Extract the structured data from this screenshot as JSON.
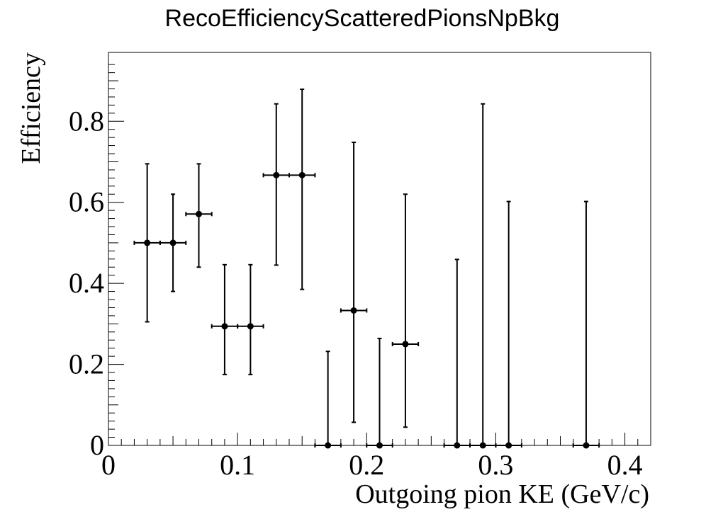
{
  "chart_data": {
    "type": "scatter",
    "title": "RecoEfficiencyScatteredPionsNpBkg",
    "xlabel": "Outgoing pion KE (GeV/c)",
    "ylabel": "Efficiency",
    "xlim": [
      0,
      0.42
    ],
    "ylim": [
      0,
      0.97
    ],
    "grid": false,
    "x_ticks": [
      {
        "value": 0,
        "label": "0"
      },
      {
        "value": 0.1,
        "label": "0.1"
      },
      {
        "value": 0.2,
        "label": "0.2"
      },
      {
        "value": 0.3,
        "label": "0.3"
      },
      {
        "value": 0.4,
        "label": "0.4"
      }
    ],
    "y_ticks": [
      {
        "value": 0,
        "label": "0"
      },
      {
        "value": 0.2,
        "label": "0.2"
      },
      {
        "value": 0.4,
        "label": "0.4"
      },
      {
        "value": 0.6,
        "label": "0.6"
      },
      {
        "value": 0.8,
        "label": "0.8"
      }
    ],
    "points": [
      {
        "x": 0.03,
        "xerr": 0.01,
        "y": 0.5,
        "ylo": 0.305,
        "yhi": 0.695
      },
      {
        "x": 0.05,
        "xerr": 0.01,
        "y": 0.5,
        "ylo": 0.38,
        "yhi": 0.62
      },
      {
        "x": 0.07,
        "xerr": 0.01,
        "y": 0.571,
        "ylo": 0.44,
        "yhi": 0.695
      },
      {
        "x": 0.09,
        "xerr": 0.01,
        "y": 0.294,
        "ylo": 0.175,
        "yhi": 0.446
      },
      {
        "x": 0.11,
        "xerr": 0.01,
        "y": 0.294,
        "ylo": 0.175,
        "yhi": 0.446
      },
      {
        "x": 0.13,
        "xerr": 0.01,
        "y": 0.667,
        "ylo": 0.445,
        "yhi": 0.843
      },
      {
        "x": 0.15,
        "xerr": 0.01,
        "y": 0.667,
        "ylo": 0.385,
        "yhi": 0.879
      },
      {
        "x": 0.17,
        "xerr": 0.01,
        "y": 0.0,
        "ylo": 0.0,
        "yhi": 0.232
      },
      {
        "x": 0.19,
        "xerr": 0.01,
        "y": 0.333,
        "ylo": 0.057,
        "yhi": 0.748
      },
      {
        "x": 0.21,
        "xerr": 0.01,
        "y": 0.0,
        "ylo": 0.0,
        "yhi": 0.264
      },
      {
        "x": 0.23,
        "xerr": 0.01,
        "y": 0.25,
        "ylo": 0.045,
        "yhi": 0.62
      },
      {
        "x": 0.27,
        "xerr": 0.01,
        "y": 0.0,
        "ylo": 0.0,
        "yhi": 0.459
      },
      {
        "x": 0.29,
        "xerr": 0.01,
        "y": 0.0,
        "ylo": 0.0,
        "yhi": 0.843
      },
      {
        "x": 0.31,
        "xerr": 0.01,
        "y": 0.0,
        "ylo": 0.0,
        "yhi": 0.602
      },
      {
        "x": 0.37,
        "xerr": 0.01,
        "y": 0.0,
        "ylo": 0.0,
        "yhi": 0.602
      }
    ],
    "marker_color": "#000000"
  }
}
